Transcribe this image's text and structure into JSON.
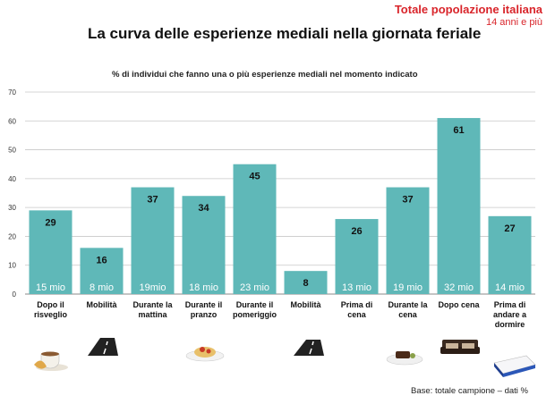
{
  "header": {
    "population": "Totale popolazione italiana",
    "age": "14 anni e più"
  },
  "chart_data": {
    "type": "bar",
    "title": "La curva delle esperienze mediali nella giornata feriale",
    "subtitle": "% di individui che fanno una o più esperienze mediali nel momento indicato",
    "ylim": [
      0,
      70
    ],
    "yticks": [
      0,
      10,
      20,
      30,
      40,
      50,
      60,
      70
    ],
    "grid": true,
    "bar_color": "#5fb8b8",
    "categories": [
      [
        "Dopo il",
        "risveglio"
      ],
      [
        "Mobilità"
      ],
      [
        "Durante la",
        "mattina"
      ],
      [
        "Durante il",
        "pranzo"
      ],
      [
        "Durante il",
        "pomeriggio"
      ],
      [
        "Mobilità"
      ],
      [
        "Prima di",
        "cena"
      ],
      [
        "Durante la",
        "cena"
      ],
      [
        "Dopo cena"
      ],
      [
        "Prima di",
        "andare a",
        "dormire"
      ]
    ],
    "values": [
      29,
      16,
      37,
      34,
      45,
      8,
      26,
      37,
      61,
      27
    ],
    "bar_labels": [
      "15 mio",
      "8 mio",
      "19mio",
      "18 mio",
      "23 mio",
      "",
      "13 mio",
      "19 mio",
      "32 mio",
      "14 mio"
    ],
    "footnote": "Base: totale campione – dati %"
  },
  "illustrations": [
    "coffee-cup-icon",
    "road-icon",
    "pasta-plate-icon",
    "road-icon",
    "dinner-plate-icon",
    "sofa-icon",
    "bed-icon"
  ]
}
